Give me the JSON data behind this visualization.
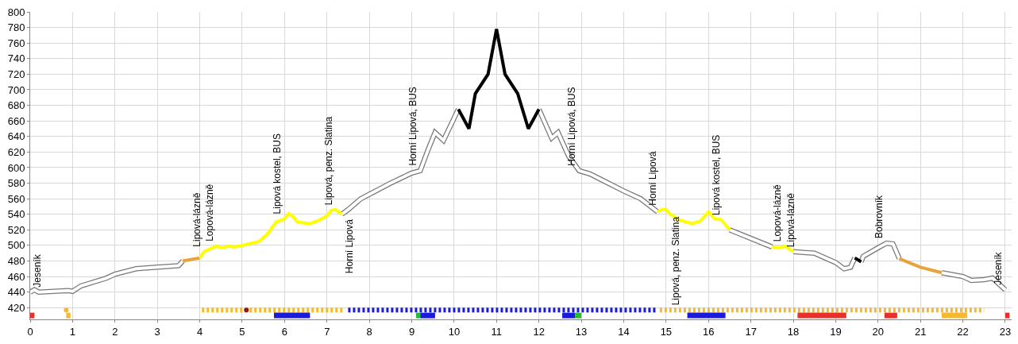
{
  "chart_data": {
    "type": "line",
    "xlim": [
      0,
      23.15
    ],
    "ylim": [
      405,
      800
    ],
    "xticks": [
      0,
      1,
      2,
      3,
      4,
      5,
      6,
      7,
      8,
      9,
      10,
      11,
      12,
      13,
      14,
      15,
      16,
      17,
      18,
      19,
      20,
      21,
      22,
      23
    ],
    "yticks": [
      420,
      440,
      460,
      480,
      500,
      520,
      540,
      560,
      580,
      600,
      620,
      640,
      660,
      680,
      700,
      720,
      740,
      760,
      780,
      800
    ],
    "grid": true,
    "marker": "none",
    "series": [
      {
        "color": "#ffffff",
        "x": [
          0,
          0.1,
          0.2,
          0.9,
          1.0,
          1.2,
          1.8,
          2.0,
          2.5,
          3.0,
          3.5,
          3.6,
          null,
          7.35,
          7.5,
          7.8,
          8.5,
          9.0,
          9.2,
          9.4,
          9.55,
          9.75,
          10.1,
          null,
          12.0,
          12.3,
          12.45,
          12.7,
          12.95,
          13.2,
          14.0,
          14.4,
          14.8,
          null,
          16.5,
          17.5,
          null,
          18.0,
          18.5,
          19.0,
          19.2,
          19.35,
          19.45,
          null,
          19.6,
          19.65,
          20.0,
          20.2,
          20.35,
          20.5,
          null,
          21.5,
          22.0,
          22.2,
          22.5,
          22.7,
          23.0
        ],
        "values": [
          440,
          443,
          440,
          442,
          441,
          448,
          458,
          463,
          470,
          472,
          474,
          480,
          null,
          540,
          546,
          560,
          580,
          593,
          596,
          625,
          645,
          635,
          675,
          null,
          675,
          638,
          645,
          615,
          596,
          592,
          570,
          560,
          543,
          null,
          520,
          498,
          null,
          492,
          490,
          478,
          470,
          472,
          484,
          null,
          479,
          486,
          497,
          503,
          502,
          483,
          null,
          465,
          460,
          455,
          456,
          458,
          443
        ]
      },
      {
        "color": "#e8a33a",
        "x": [
          3.6,
          4.0,
          null,
          20.5,
          21.0,
          21.5
        ],
        "values": [
          480,
          484,
          null,
          483,
          472,
          465
        ]
      },
      {
        "color": "#ffff00",
        "x": [
          4.0,
          4.1,
          4.3,
          4.4,
          4.5,
          4.7,
          4.8,
          5.0,
          5.4,
          5.6,
          5.8,
          6.0,
          6.1,
          6.2,
          6.3,
          6.6,
          6.8,
          7.0,
          7.1,
          7.2,
          7.35,
          null,
          14.8,
          14.9,
          15.0,
          15.1,
          15.3,
          15.6,
          15.8,
          16.0,
          16.15,
          16.3,
          16.5,
          null,
          17.5,
          17.7,
          17.8,
          18.0
        ],
        "values": [
          484,
          492,
          497,
          499,
          497,
          499,
          498,
          500,
          505,
          515,
          530,
          534,
          541,
          537,
          530,
          528,
          532,
          538,
          545,
          546,
          540,
          null,
          543,
          546,
          546,
          540,
          533,
          528,
          531,
          543,
          534,
          533,
          520,
          null,
          498,
          497,
          499,
          492
        ]
      },
      {
        "color": "#000000",
        "x": [
          10.1,
          10.35,
          10.5,
          10.8,
          11.0,
          11.2,
          11.5,
          11.75,
          12.0,
          null,
          19.45,
          19.6
        ],
        "values": [
          675,
          650,
          695,
          720,
          778,
          720,
          695,
          650,
          675,
          null,
          484,
          479
        ]
      },
      {
        "color": "#f5b82e",
        "type": "scatter",
        "x": [
          0.85
        ],
        "values": [
          417
        ]
      },
      {
        "color": "#f5b82e",
        "line_style": "dotted",
        "x": [
          4.05,
          7.4,
          null,
          14.85,
          22.5
        ],
        "values": [
          417,
          417,
          null,
          417,
          417
        ]
      },
      {
        "color": "#1a1adc",
        "line_style": "dotted",
        "x": [
          7.5,
          14.75
        ],
        "values": [
          417,
          417
        ]
      },
      {
        "color": "#f5b82e",
        "x": [
          0.85,
          0.95,
          null,
          21.5,
          22.1
        ],
        "values": [
          410,
          410,
          null,
          410,
          410
        ]
      },
      {
        "color": "#1a1adc",
        "x": [
          5.75,
          6.6,
          null,
          9.2,
          9.55,
          null,
          12.55,
          12.85,
          null,
          15.5,
          16.4
        ],
        "values": [
          410,
          410,
          null,
          410,
          410,
          null,
          410,
          410,
          null,
          410,
          410
        ]
      },
      {
        "color": "#22bb33",
        "x": [
          9.1,
          9.2,
          null,
          12.85,
          13.0
        ],
        "values": [
          410,
          410,
          null,
          410,
          410
        ]
      },
      {
        "color": "#e8302a",
        "x": [
          0,
          0.1,
          null,
          18.1,
          19.25,
          null,
          20.15,
          20.45,
          null,
          23.0,
          23.1
        ],
        "values": [
          410,
          410,
          null,
          410,
          410,
          null,
          410,
          410,
          null,
          410,
          410
        ]
      },
      {
        "color": "#8b1a1a",
        "type": "scatter",
        "x": [
          5.1
        ],
        "values": [
          417
        ]
      }
    ],
    "annotations": [
      {
        "text": "Jeseník",
        "x": 0,
        "y": 440
      },
      {
        "text": "Lipová-lázně",
        "x": 4.1,
        "y": 492
      },
      {
        "text": "Lopová-lázně",
        "x": 4.4,
        "y": 499
      },
      {
        "text": "Lipová kostel, BUS",
        "x": 6.0,
        "y": 534
      },
      {
        "text": "Lipová, penz. Slatina",
        "x": 7.2,
        "y": 546
      },
      {
        "text": "Horní Lipová",
        "x": 7.35,
        "y": 540
      },
      {
        "text": "Horní Lipová, BUS",
        "x": 9.2,
        "y": 596
      },
      {
        "text": "Horní Lipová, BUS",
        "x": 12.95,
        "y": 596
      },
      {
        "text": "Horní Lipová",
        "x": 14.85,
        "y": 545
      },
      {
        "text": "Lipová, penz. Slatina",
        "x": 15.05,
        "y": 543
      },
      {
        "text": "Lipová kostel, BUS",
        "x": 16.35,
        "y": 533
      },
      {
        "text": "Lopová-lázně",
        "x": 17.8,
        "y": 499
      },
      {
        "text": "Lipová-lázně",
        "x": 18.1,
        "y": 492
      },
      {
        "text": "Bobrovník",
        "x": 20.2,
        "y": 503
      },
      {
        "text": "Jeseník",
        "x": 23.0,
        "y": 443
      }
    ]
  }
}
